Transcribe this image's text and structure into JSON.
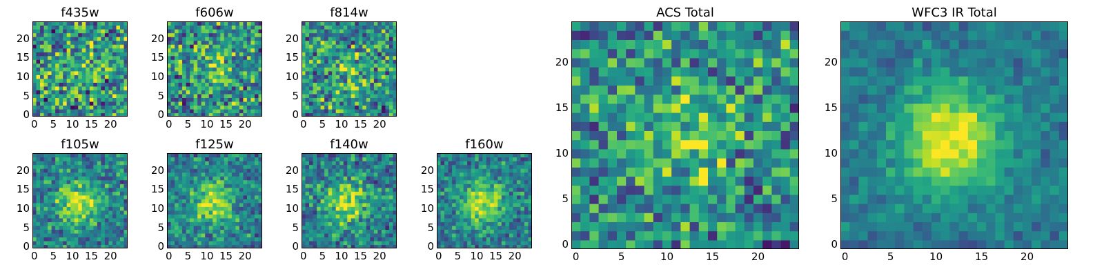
{
  "chart_data": [
    {
      "type": "heatmap",
      "title": "f435w",
      "grid_size": 25,
      "peak_strength": 0.1,
      "noise": 0.55,
      "seed": 11,
      "xticks": [
        "0",
        "5",
        "10",
        "15",
        "20"
      ],
      "yticks": [
        "0",
        "5",
        "10",
        "15",
        "20"
      ]
    },
    {
      "type": "heatmap",
      "title": "f606w",
      "grid_size": 25,
      "peak_strength": 0.18,
      "noise": 0.5,
      "seed": 23,
      "xticks": [
        "0",
        "5",
        "10",
        "15",
        "20"
      ],
      "yticks": [
        "0",
        "5",
        "10",
        "15",
        "20"
      ]
    },
    {
      "type": "heatmap",
      "title": "f814w",
      "grid_size": 25,
      "peak_strength": 0.22,
      "noise": 0.5,
      "seed": 37,
      "xticks": [
        "0",
        "5",
        "10",
        "15",
        "20"
      ],
      "yticks": [
        "0",
        "5",
        "10",
        "15",
        "20"
      ]
    },
    {
      "type": "heatmap",
      "title": "f105w",
      "grid_size": 25,
      "peak_strength": 0.45,
      "noise": 0.35,
      "seed": 41,
      "xticks": [
        "0",
        "5",
        "10",
        "15",
        "20"
      ],
      "yticks": [
        "0",
        "5",
        "10",
        "15",
        "20"
      ]
    },
    {
      "type": "heatmap",
      "title": "f125w",
      "grid_size": 25,
      "peak_strength": 0.45,
      "noise": 0.35,
      "seed": 53,
      "xticks": [
        "0",
        "5",
        "10",
        "15",
        "20"
      ],
      "yticks": [
        "0",
        "5",
        "10",
        "15",
        "20"
      ]
    },
    {
      "type": "heatmap",
      "title": "f140w",
      "grid_size": 25,
      "peak_strength": 0.45,
      "noise": 0.35,
      "seed": 67,
      "xticks": [
        "0",
        "5",
        "10",
        "15",
        "20"
      ],
      "yticks": [
        "0",
        "5",
        "10",
        "15",
        "20"
      ]
    },
    {
      "type": "heatmap",
      "title": "f160w",
      "grid_size": 25,
      "peak_strength": 0.5,
      "noise": 0.32,
      "seed": 79,
      "xticks": [
        "0",
        "5",
        "10",
        "15",
        "20"
      ],
      "yticks": [
        "0",
        "5",
        "10",
        "15",
        "20"
      ]
    },
    {
      "type": "heatmap",
      "title": "ACS Total",
      "grid_size": 25,
      "peak_strength": 0.25,
      "noise": 0.45,
      "seed": 83,
      "xticks": [
        "0",
        "5",
        "10",
        "15",
        "20"
      ],
      "yticks": [
        "0",
        "5",
        "10",
        "15",
        "20"
      ]
    },
    {
      "type": "heatmap",
      "title": "WFC3 IR Total",
      "grid_size": 25,
      "peak_strength": 0.6,
      "noise": 0.18,
      "seed": 97,
      "xticks": [
        "0",
        "5",
        "10",
        "15",
        "20"
      ],
      "yticks": [
        "0",
        "5",
        "10",
        "15",
        "20"
      ]
    }
  ],
  "colormap": "viridis"
}
